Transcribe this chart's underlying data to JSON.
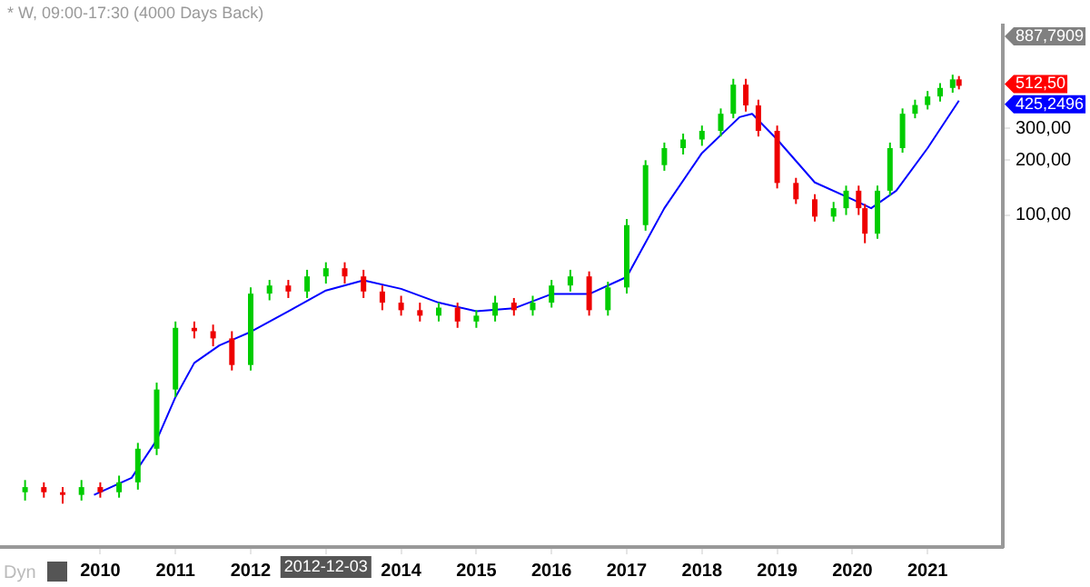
{
  "chart_data": {
    "type": "candlestick",
    "title": "* W, 09:00-17:30 (4000 Days Back)",
    "x": [
      "2009-01",
      "2009-04",
      "2009-07",
      "2009-10",
      "2010-01",
      "2010-04",
      "2010-07",
      "2010-10",
      "2011-01",
      "2011-04",
      "2011-07",
      "2011-10",
      "2012-01",
      "2012-04",
      "2012-07",
      "2012-10",
      "2013-01",
      "2013-04",
      "2013-07",
      "2013-10",
      "2014-01",
      "2014-04",
      "2014-07",
      "2014-10",
      "2015-01",
      "2015-04",
      "2015-07",
      "2015-10",
      "2016-01",
      "2016-04",
      "2016-07",
      "2016-10",
      "2017-01",
      "2017-04",
      "2017-07",
      "2017-10",
      "2018-01",
      "2018-04",
      "2018-06",
      "2018-08",
      "2018-10",
      "2019-01",
      "2019-04",
      "2019-07",
      "2019-10",
      "2019-12",
      "2020-02",
      "2020-03",
      "2020-05",
      "2020-07",
      "2020-09",
      "2020-11",
      "2021-01",
      "2021-03",
      "2021-05",
      "2021-06"
    ],
    "ohlc": [
      [
        3.0,
        3.5,
        2.7,
        3.2
      ],
      [
        3.2,
        3.4,
        2.8,
        3.0
      ],
      [
        3.0,
        3.2,
        2.6,
        2.9
      ],
      [
        2.9,
        3.5,
        2.7,
        3.2
      ],
      [
        3.2,
        3.4,
        2.8,
        3.0
      ],
      [
        3.0,
        3.7,
        2.8,
        3.4
      ],
      [
        3.4,
        5.6,
        3.1,
        5.2
      ],
      [
        5.2,
        12,
        4.8,
        11
      ],
      [
        11,
        26,
        10,
        24
      ],
      [
        24,
        26,
        21,
        23
      ],
      [
        23,
        25,
        19,
        21
      ],
      [
        21,
        23,
        14,
        15
      ],
      [
        15,
        40,
        14,
        37
      ],
      [
        37,
        44,
        34,
        41
      ],
      [
        41,
        44,
        35,
        38
      ],
      [
        38,
        50,
        35,
        46
      ],
      [
        46,
        55,
        42,
        51
      ],
      [
        51,
        55,
        42,
        46
      ],
      [
        46,
        50,
        35,
        38
      ],
      [
        38,
        41,
        30,
        33
      ],
      [
        33,
        36,
        28,
        30
      ],
      [
        30,
        33,
        26,
        28
      ],
      [
        28,
        33,
        26,
        31
      ],
      [
        31,
        33,
        24,
        26
      ],
      [
        26,
        30,
        24,
        28
      ],
      [
        28,
        36,
        26,
        33
      ],
      [
        33,
        35,
        28,
        30
      ],
      [
        30,
        36,
        28,
        33
      ],
      [
        33,
        44,
        31,
        41
      ],
      [
        41,
        50,
        38,
        46
      ],
      [
        46,
        49,
        28,
        30
      ],
      [
        30,
        43,
        28,
        40
      ],
      [
        40,
        95,
        37,
        88
      ],
      [
        88,
        200,
        82,
        188
      ],
      [
        188,
        250,
        175,
        233
      ],
      [
        233,
        280,
        215,
        260
      ],
      [
        260,
        310,
        240,
        290
      ],
      [
        290,
        385,
        270,
        360
      ],
      [
        360,
        560,
        340,
        520
      ],
      [
        520,
        560,
        370,
        400
      ],
      [
        400,
        430,
        270,
        290
      ],
      [
        290,
        310,
        140,
        150
      ],
      [
        150,
        160,
        115,
        122
      ],
      [
        122,
        130,
        92,
        98
      ],
      [
        98,
        118,
        92,
        109
      ],
      [
        109,
        145,
        100,
        136
      ],
      [
        136,
        145,
        100,
        109
      ],
      [
        109,
        115,
        70,
        79
      ],
      [
        79,
        145,
        74,
        136
      ],
      [
        136,
        250,
        128,
        233
      ],
      [
        233,
        385,
        220,
        360
      ],
      [
        360,
        430,
        340,
        402
      ],
      [
        402,
        480,
        380,
        448
      ],
      [
        448,
        530,
        420,
        499
      ],
      [
        499,
        590,
        470,
        556
      ],
      [
        556,
        580,
        490,
        512.5
      ]
    ],
    "series": [
      {
        "type": "line",
        "color": "#0000ff",
        "x": [
          "2009-12",
          "2010-06",
          "2010-10",
          "2011-01",
          "2011-04",
          "2011-08",
          "2012-01",
          "2012-07",
          "2013-01",
          "2013-07",
          "2014-01",
          "2014-07",
          "2015-01",
          "2015-07",
          "2016-01",
          "2016-07",
          "2017-01",
          "2017-07",
          "2018-01",
          "2018-07",
          "2018-09",
          "2019-01",
          "2019-07",
          "2020-01",
          "2020-04",
          "2020-08",
          "2021-01",
          "2021-06"
        ],
        "values": [
          2.9,
          3.6,
          5.8,
          10,
          15.4,
          19.2,
          22.8,
          29.6,
          38.5,
          43.8,
          39.3,
          33,
          29.6,
          30.7,
          36.8,
          36.8,
          45.7,
          109,
          219,
          345,
          360,
          260,
          151,
          122,
          109,
          136,
          233,
          425.2496
        ]
      }
    ],
    "log": "y",
    "ylim": [
      1.5,
      1100
    ],
    "yticks": [
      {
        "value": 100,
        "label": "100,00"
      },
      {
        "value": 200,
        "label": "200,00"
      },
      {
        "value": 300,
        "label": "300,00"
      }
    ],
    "xlim": [
      "2008-09",
      "2022-01"
    ],
    "xticks": [
      "2010",
      "2011",
      "2012",
      {
        "value": "2013",
        "label": null
      },
      "2014",
      "2015",
      "2016",
      "2017",
      "2018",
      "2019",
      "2020",
      "2021"
    ],
    "grid": false,
    "legend": false,
    "annotations": [
      "887,7909",
      "512,50",
      "425,2496",
      "2012-12-03",
      "Dyn"
    ]
  }
}
